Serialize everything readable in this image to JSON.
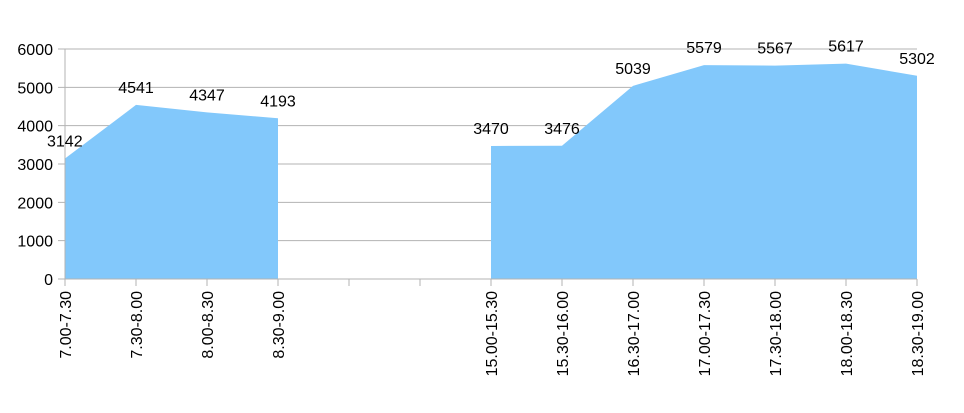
{
  "chart_data": {
    "type": "area",
    "title": "",
    "xlabel": "",
    "ylabel": "",
    "categories": [
      "7.00-7.30",
      "7.30-8.00",
      "8.00-8.30",
      "8.30-9.00",
      "",
      "",
      "15.00-15.30",
      "15.30-16.00",
      "16.30-17.00",
      "17.00-17.30",
      "17.30-18.00",
      "18.00-18.30",
      "18.30-19.00"
    ],
    "series": [
      {
        "values": [
          3142,
          4541,
          4347,
          4193,
          null,
          null,
          3470,
          3476,
          5039,
          5579,
          5567,
          5617,
          5302
        ]
      }
    ],
    "ylim": [
      0,
      6000
    ],
    "yticks": [
      0,
      1000,
      2000,
      3000,
      4000,
      5000,
      6000
    ],
    "grid": true,
    "legend": "none",
    "colors": {
      "fill": "#82c8fb",
      "grid": "#b3b3b3",
      "axis": "#b3b3b3"
    }
  }
}
